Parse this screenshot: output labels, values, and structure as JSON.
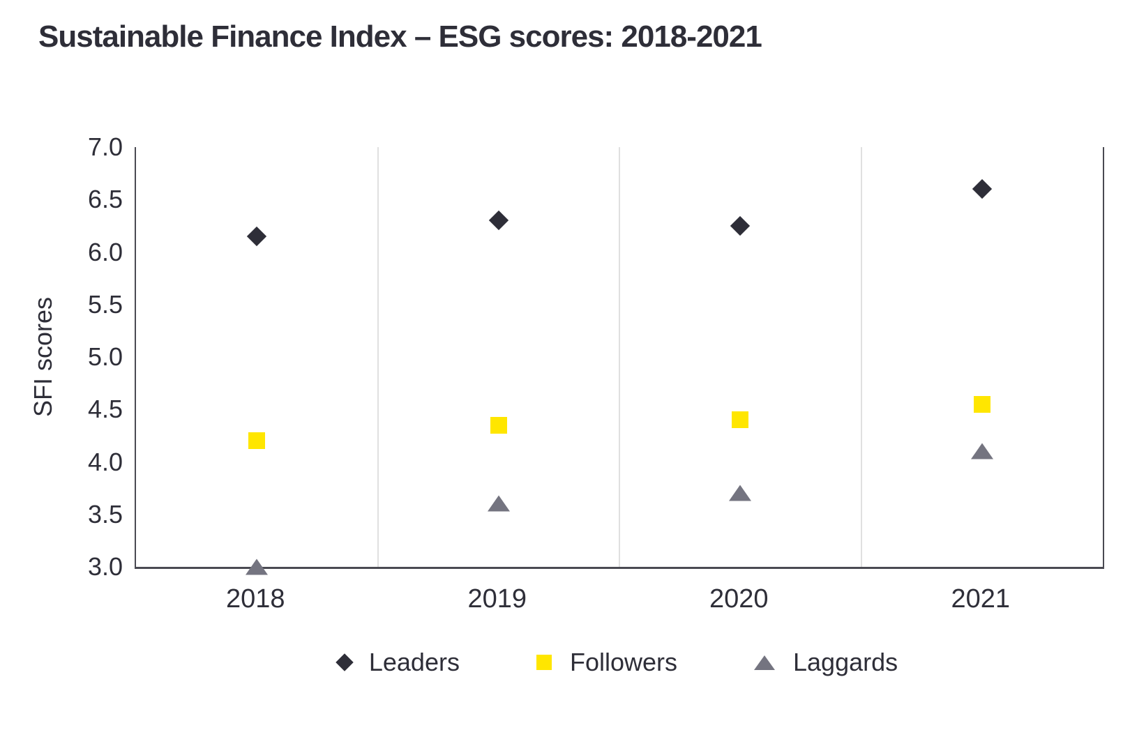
{
  "title": "Sustainable Finance Index – ESG scores: 2018-2021",
  "chart_data": {
    "type": "scatter",
    "title": "Sustainable Finance Index – ESG scores: 2018-2021",
    "categories": [
      "2018",
      "2019",
      "2020",
      "2021"
    ],
    "series": [
      {
        "name": "Leaders",
        "marker": "diamond",
        "color": "#2e2e38",
        "values": [
          6.15,
          6.3,
          6.25,
          6.6
        ]
      },
      {
        "name": "Followers",
        "marker": "square",
        "color": "#ffe600",
        "values": [
          4.2,
          4.35,
          4.4,
          4.55
        ]
      },
      {
        "name": "Laggards",
        "marker": "triangle",
        "color": "#747480",
        "values": [
          3.0,
          3.6,
          3.7,
          4.1
        ]
      }
    ],
    "xlabel": "",
    "ylabel": "SFI scores",
    "ylim": [
      3.0,
      7.0
    ],
    "ytick_step": 0.5,
    "yticks": [
      "7.0",
      "6.5",
      "6.0",
      "5.5",
      "5.0",
      "4.5",
      "4.0",
      "3.5",
      "3.0"
    ],
    "grid": "vertical column separators",
    "legend_position": "bottom"
  },
  "colors": {
    "leaders": "#2e2e38",
    "followers": "#ffe600",
    "laggards": "#747480",
    "axis_line": "#4a4a52",
    "separator": "#e0e0e0",
    "text": "#2e2e38",
    "background": "#ffffff"
  }
}
